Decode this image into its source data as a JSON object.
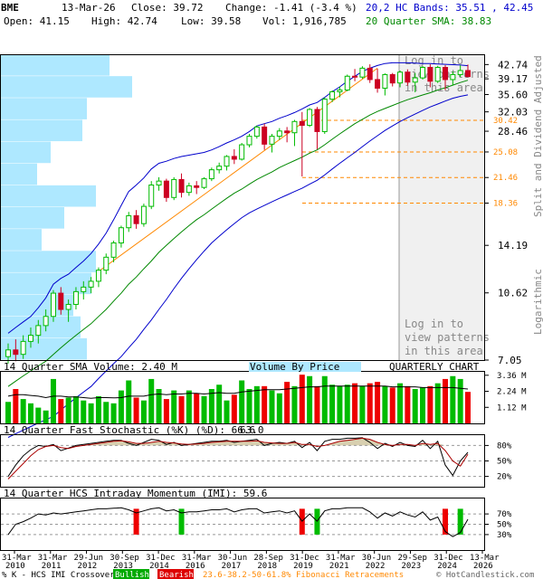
{
  "header": {
    "symbol": "BME",
    "date": "13-Mar-26",
    "close": "Close: 39.72",
    "change": "Change: -1.41 (-3.4 %)",
    "open": "Open: 41.15",
    "high": "High: 42.74",
    "low": "Low: 39.58",
    "vol": "Vol: 1,916,785",
    "bands": "20,2 HC Bands: 35.51 , 42.45",
    "sma": "20 Quarter SMA: 38.83"
  },
  "colors": {
    "up": "#00bb00",
    "down": "#cc0022",
    "upper_band": "#0000cc",
    "sma_line": "#008800",
    "lower_band": "#0000cc",
    "fib": "#ff8800",
    "vbp": "#aee8ff",
    "bands_text": "#0000cc",
    "sma_text": "#008800"
  },
  "chart_data": {
    "type": "candlestick",
    "period": "quarterly",
    "y_scale": "logarithmic",
    "y_ticks": [
      "42.74",
      "39.17",
      "35.60",
      "32.03",
      "28.46",
      "25.08",
      "21.46",
      "18.36",
      "14.19",
      "10.62",
      "7.05"
    ],
    "fib_levels": [
      "30.42",
      "25.08",
      "21.46",
      "18.36"
    ],
    "right_axis_label": "Split and Dividend Adjusted",
    "log_label": "Logarithmic",
    "login_text_1": [
      "Log in to",
      "view patterns",
      "in this area"
    ],
    "login_text_2": [
      "Log in to",
      "view patterns",
      "in this area"
    ],
    "x_labels": [
      "31-Mar\n2010",
      "31-Mar\n2011",
      "29-Jun\n2012",
      "30-Sep\n2013",
      "31-Dec\n2014",
      "31-Mar\n2016",
      "30-Jun\n2017",
      "28-Sep\n2018",
      "31-Dec\n2019",
      "31-Mar\n2021",
      "30-Jun\n2022",
      "29-Sep\n2023",
      "31-Dec\n2024",
      "13-Mar\n2026"
    ],
    "candles": [
      [
        7.2,
        7.8,
        6.9,
        7.5
      ],
      [
        7.5,
        8.0,
        7.0,
        7.3
      ],
      [
        7.3,
        8.2,
        7.1,
        7.9
      ],
      [
        7.9,
        8.6,
        7.6,
        8.2
      ],
      [
        8.2,
        9.0,
        7.8,
        8.7
      ],
      [
        8.7,
        9.6,
        8.4,
        9.2
      ],
      [
        9.2,
        10.8,
        8.9,
        10.6
      ],
      [
        10.6,
        11.0,
        9.3,
        9.6
      ],
      [
        9.6,
        10.2,
        8.9,
        9.9
      ],
      [
        9.9,
        11.0,
        9.6,
        10.7
      ],
      [
        10.7,
        11.4,
        10.2,
        11.0
      ],
      [
        11.0,
        11.7,
        10.6,
        11.4
      ],
      [
        11.4,
        12.4,
        11.0,
        12.2
      ],
      [
        12.2,
        13.5,
        11.9,
        13.2
      ],
      [
        13.2,
        14.6,
        12.8,
        14.4
      ],
      [
        14.4,
        16.0,
        14.0,
        15.8
      ],
      [
        15.8,
        17.4,
        15.4,
        17.0
      ],
      [
        17.0,
        17.6,
        15.7,
        16.2
      ],
      [
        16.2,
        18.3,
        15.9,
        18.0
      ],
      [
        18.0,
        21.0,
        17.7,
        20.5
      ],
      [
        20.5,
        21.5,
        19.8,
        21.0
      ],
      [
        21.0,
        21.3,
        18.5,
        19.0
      ],
      [
        19.0,
        21.5,
        18.7,
        21.2
      ],
      [
        21.2,
        22.0,
        19.0,
        19.6
      ],
      [
        19.6,
        20.8,
        19.2,
        20.4
      ],
      [
        20.4,
        21.0,
        19.4,
        20.2
      ],
      [
        20.2,
        21.5,
        20.0,
        21.3
      ],
      [
        21.3,
        22.8,
        21.0,
        22.5
      ],
      [
        22.5,
        23.5,
        22.0,
        23.0
      ],
      [
        23.0,
        24.6,
        22.4,
        24.4
      ],
      [
        24.4,
        25.5,
        23.3,
        24.0
      ],
      [
        24.0,
        26.5,
        23.8,
        26.2
      ],
      [
        26.2,
        28.0,
        25.8,
        27.6
      ],
      [
        27.6,
        29.5,
        27.2,
        29.2
      ],
      [
        29.2,
        29.8,
        25.4,
        26.3
      ],
      [
        26.3,
        28.0,
        25.0,
        27.6
      ],
      [
        27.6,
        29.0,
        27.0,
        28.5
      ],
      [
        28.5,
        29.2,
        26.6,
        28.2
      ],
      [
        28.2,
        30.5,
        26.0,
        30.2
      ],
      [
        30.2,
        32.0,
        21.6,
        29.5
      ],
      [
        29.5,
        32.8,
        29.2,
        32.5
      ],
      [
        32.5,
        33.0,
        25.5,
        28.4
      ],
      [
        28.4,
        35.0,
        28.0,
        34.6
      ],
      [
        34.6,
        36.5,
        34.0,
        36.2
      ],
      [
        36.2,
        37.4,
        35.0,
        36.6
      ],
      [
        36.6,
        40.2,
        36.3,
        39.8
      ],
      [
        39.8,
        41.6,
        38.6,
        39.6
      ],
      [
        39.6,
        42.3,
        39.2,
        41.8
      ],
      [
        41.8,
        42.8,
        38.2,
        39.0
      ],
      [
        39.0,
        41.7,
        36.0,
        37.0
      ],
      [
        37.0,
        40.5,
        35.4,
        40.2
      ],
      [
        40.2,
        40.6,
        37.4,
        38.2
      ],
      [
        38.2,
        41.2,
        37.2,
        40.8
      ],
      [
        40.8,
        41.5,
        37.6,
        38.4
      ],
      [
        38.4,
        40.6,
        36.1,
        39.4
      ],
      [
        39.4,
        42.4,
        39.0,
        42.0
      ],
      [
        42.0,
        42.8,
        37.2,
        38.6
      ],
      [
        38.6,
        42.4,
        38.2,
        42.0
      ],
      [
        42.0,
        42.6,
        36.6,
        39.0
      ],
      [
        39.0,
        41.0,
        37.6,
        40.2
      ],
      [
        40.2,
        42.6,
        39.6,
        41.2
      ],
      [
        41.2,
        42.74,
        39.58,
        39.72
      ]
    ],
    "upper_band": [
      8.3,
      8.6,
      8.9,
      9.2,
      9.7,
      10.3,
      11.2,
      11.6,
      11.9,
      12.4,
      12.9,
      13.5,
      14.3,
      15.3,
      16.6,
      18.1,
      19.7,
      20.5,
      21.4,
      22.6,
      23.4,
      23.7,
      24.1,
      24.4,
      24.6,
      24.8,
      25.0,
      25.4,
      25.9,
      26.5,
      27.0,
      27.6,
      28.4,
      29.4,
      29.8,
      30.2,
      30.8,
      31.3,
      31.9,
      32.6,
      33.4,
      33.9,
      35.0,
      36.2,
      37.3,
      38.6,
      39.8,
      41.0,
      41.8,
      42.5,
      43.0,
      43.2,
      43.2,
      43.2,
      43.1,
      43.0,
      43.0,
      42.9,
      42.8,
      42.7,
      42.6,
      42.45
    ],
    "sma": [
      6.0,
      6.2,
      6.4,
      6.6,
      6.8,
      7.0,
      7.3,
      7.6,
      7.9,
      8.2,
      8.5,
      8.8,
      9.2,
      9.6,
      10.1,
      10.6,
      11.2,
      11.7,
      12.3,
      12.9,
      13.6,
      14.2,
      14.8,
      15.4,
      16.0,
      16.6,
      17.1,
      17.7,
      18.3,
      18.9,
      19.5,
      20.0,
      20.6,
      21.2,
      21.7,
      22.2,
      22.8,
      23.3,
      23.8,
      24.3,
      24.9,
      25.4,
      26.2,
      27.1,
      28.0,
      28.9,
      29.8,
      30.6,
      31.4,
      32.1,
      32.7,
      33.3,
      33.9,
      34.5,
      35.0,
      35.5,
      36.0,
      36.6,
      37.1,
      37.7,
      38.3,
      38.83
    ],
    "lower_band": [
      4.4,
      4.5,
      4.6,
      4.7,
      4.8,
      4.9,
      5.0,
      5.2,
      5.4,
      5.6,
      5.8,
      6.0,
      6.3,
      6.6,
      6.9,
      7.2,
      7.6,
      8.0,
      8.5,
      9.0,
      9.6,
      10.2,
      10.9,
      11.6,
      12.3,
      13.0,
      13.7,
      14.4,
      15.0,
      15.6,
      16.2,
      16.8,
      17.3,
      17.7,
      18.1,
      18.5,
      18.9,
      19.3,
      19.7,
      20.1,
      20.6,
      21.1,
      21.8,
      22.6,
      23.4,
      24.2,
      25.0,
      25.9,
      26.8,
      27.7,
      28.6,
      29.4,
      30.2,
      30.9,
      31.6,
      32.3,
      33.0,
      33.6,
      34.2,
      34.8,
      35.2,
      35.51
    ],
    "trend_line": [
      [
        12,
        12.1
      ],
      [
        49,
        41.8
      ]
    ],
    "vbp_bars": [
      120,
      145,
      95,
      90,
      55,
      40,
      105,
      70,
      45,
      105,
      100,
      80,
      88,
      95
    ],
    "volume": {
      "label": "14 Quarter SMA Volume: 2.40 M",
      "vbp_label": "Volume By Price",
      "chart_label": "QUARTERLY CHART",
      "ticks": [
        "3.36 M",
        "2.24 M",
        "1.12 M"
      ],
      "max": 3.6,
      "values": [
        1.5,
        2.4,
        1.7,
        1.4,
        1.1,
        0.9,
        3.1,
        1.7,
        1.8,
        1.9,
        1.6,
        1.4,
        1.9,
        1.5,
        1.4,
        2.3,
        3.0,
        1.8,
        1.6,
        3.1,
        2.4,
        1.7,
        2.3,
        1.9,
        2.3,
        2.1,
        1.9,
        2.4,
        2.7,
        1.6,
        2.0,
        3.0,
        2.4,
        2.6,
        2.6,
        2.3,
        2.1,
        2.9,
        2.6,
        3.4,
        3.3,
        2.6,
        3.3,
        2.7,
        2.6,
        2.7,
        2.8,
        2.6,
        2.8,
        2.9,
        2.6,
        2.5,
        2.8,
        2.6,
        2.4,
        2.5,
        2.6,
        2.8,
        3.1,
        3.3,
        3.1,
        2.2
      ],
      "sma": [
        1.9,
        2.0,
        2.0,
        1.95,
        1.9,
        1.8,
        1.9,
        1.9,
        1.85,
        1.85,
        1.8,
        1.75,
        1.8,
        1.8,
        1.78,
        1.8,
        1.9,
        1.9,
        1.9,
        2.0,
        2.05,
        2.0,
        2.05,
        2.05,
        2.1,
        2.1,
        2.05,
        2.1,
        2.15,
        2.1,
        2.1,
        2.2,
        2.25,
        2.3,
        2.35,
        2.35,
        2.35,
        2.4,
        2.45,
        2.5,
        2.55,
        2.55,
        2.6,
        2.6,
        2.6,
        2.6,
        2.6,
        2.6,
        2.6,
        2.6,
        2.6,
        2.55,
        2.55,
        2.55,
        2.55,
        2.5,
        2.5,
        2.5,
        2.5,
        2.5,
        2.45,
        2.4
      ]
    },
    "stochastic": {
      "label": "14 Quarter Fast Stochastic (%K) (%D): 66.6",
      "d_value": "63.0",
      "ticks": [
        "80%",
        "50%",
        "20%"
      ],
      "k": [
        20,
        42,
        60,
        72,
        80,
        78,
        82,
        70,
        75,
        80,
        82,
        84,
        86,
        88,
        90,
        90,
        84,
        80,
        86,
        92,
        90,
        82,
        86,
        80,
        82,
        84,
        86,
        88,
        88,
        90,
        86,
        88,
        90,
        92,
        80,
        84,
        86,
        84,
        88,
        76,
        86,
        70,
        88,
        92,
        92,
        94,
        94,
        95,
        86,
        74,
        84,
        78,
        86,
        80,
        78,
        90,
        74,
        88,
        42,
        22,
        50,
        66.6
      ],
      "d": [
        15,
        30,
        45,
        60,
        72,
        78,
        80,
        76,
        74,
        78,
        80,
        82,
        84,
        86,
        88,
        89,
        87,
        84,
        84,
        86,
        88,
        86,
        85,
        83,
        82,
        83,
        84,
        86,
        87,
        88,
        88,
        88,
        88,
        89,
        86,
        85,
        84,
        84,
        86,
        82,
        82,
        78,
        80,
        84,
        88,
        90,
        92,
        94,
        92,
        86,
        82,
        80,
        82,
        82,
        80,
        84,
        82,
        84,
        70,
        50,
        40,
        63.0
      ]
    },
    "momentum": {
      "label": "14 Quarter HCS Intraday Momentum (IMI): 59.6",
      "ticks": [
        "70%",
        "50%",
        "30%"
      ],
      "values": [
        30,
        50,
        55,
        62,
        70,
        68,
        72,
        70,
        72,
        74,
        76,
        78,
        80,
        80,
        81,
        82,
        78,
        72,
        76,
        80,
        82,
        76,
        78,
        72,
        74,
        74,
        76,
        78,
        78,
        80,
        74,
        78,
        80,
        80,
        72,
        74,
        76,
        72,
        76,
        56,
        70,
        56,
        76,
        80,
        80,
        82,
        82,
        82,
        74,
        62,
        72,
        66,
        74,
        68,
        64,
        74,
        58,
        64,
        36,
        26,
        34,
        59.6
      ],
      "bearish_idx": [
        17,
        39,
        58
      ],
      "bullish_idx": [
        23,
        41,
        60
      ]
    }
  },
  "footer": {
    "prefix": "% K - HCS IMI Crossover,",
    "bullish": "Bullish",
    "bearish": "Bearish",
    "fib": "23.6-38.2-50-61.8% Fibonacci Retracements",
    "copyright": "© HotCandlestick.com"
  }
}
